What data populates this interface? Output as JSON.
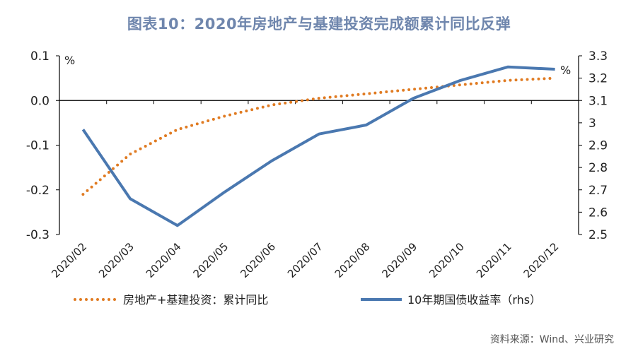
{
  "chart_data": {
    "type": "line",
    "title": "图表10：2020年房地产与基建投资完成额累计同比反弹",
    "categories": [
      "2020/02",
      "2020/03",
      "2020/04",
      "2020/05",
      "2020/06",
      "2020/07",
      "2020/08",
      "2020/09",
      "2020/10",
      "2020/11",
      "2020/12"
    ],
    "left_axis": {
      "unit": "%",
      "ylim": [
        -0.3,
        0.1
      ],
      "ticks": [
        0.1,
        0.0,
        -0.1,
        -0.2,
        -0.3
      ],
      "tick_labels": [
        "0.1",
        "0.0",
        "-0.1",
        "-0.2",
        "-0.3"
      ]
    },
    "right_axis": {
      "unit": "%",
      "ylim": [
        2.5,
        3.3
      ],
      "ticks": [
        3.3,
        3.2,
        3.1,
        3.0,
        2.9,
        2.8,
        2.7,
        2.6,
        2.5
      ],
      "tick_labels": [
        "3.3",
        "3.2",
        "3.1",
        "3",
        "2.9",
        "2.8",
        "2.7",
        "2.6",
        "2.5"
      ]
    },
    "series": [
      {
        "name": "房地产+基建投资：累计同比",
        "axis": "left",
        "style": "dotted",
        "color": "#e07b22",
        "values": [
          -0.21,
          -0.12,
          -0.065,
          -0.035,
          -0.01,
          0.005,
          0.015,
          0.025,
          0.035,
          0.045,
          0.05
        ]
      },
      {
        "name": "10年期国债收益率（rhs）",
        "axis": "right",
        "style": "solid",
        "color": "#4a78b0",
        "values": [
          2.97,
          2.66,
          2.54,
          2.69,
          2.83,
          2.95,
          2.99,
          3.11,
          3.19,
          3.25,
          3.24
        ]
      }
    ],
    "legend": [
      "房地产+基建投资：累计同比",
      "10年期国债收益率（rhs）"
    ],
    "legend_position": "bottom"
  },
  "source": "资料来源：Wind、兴业研究"
}
